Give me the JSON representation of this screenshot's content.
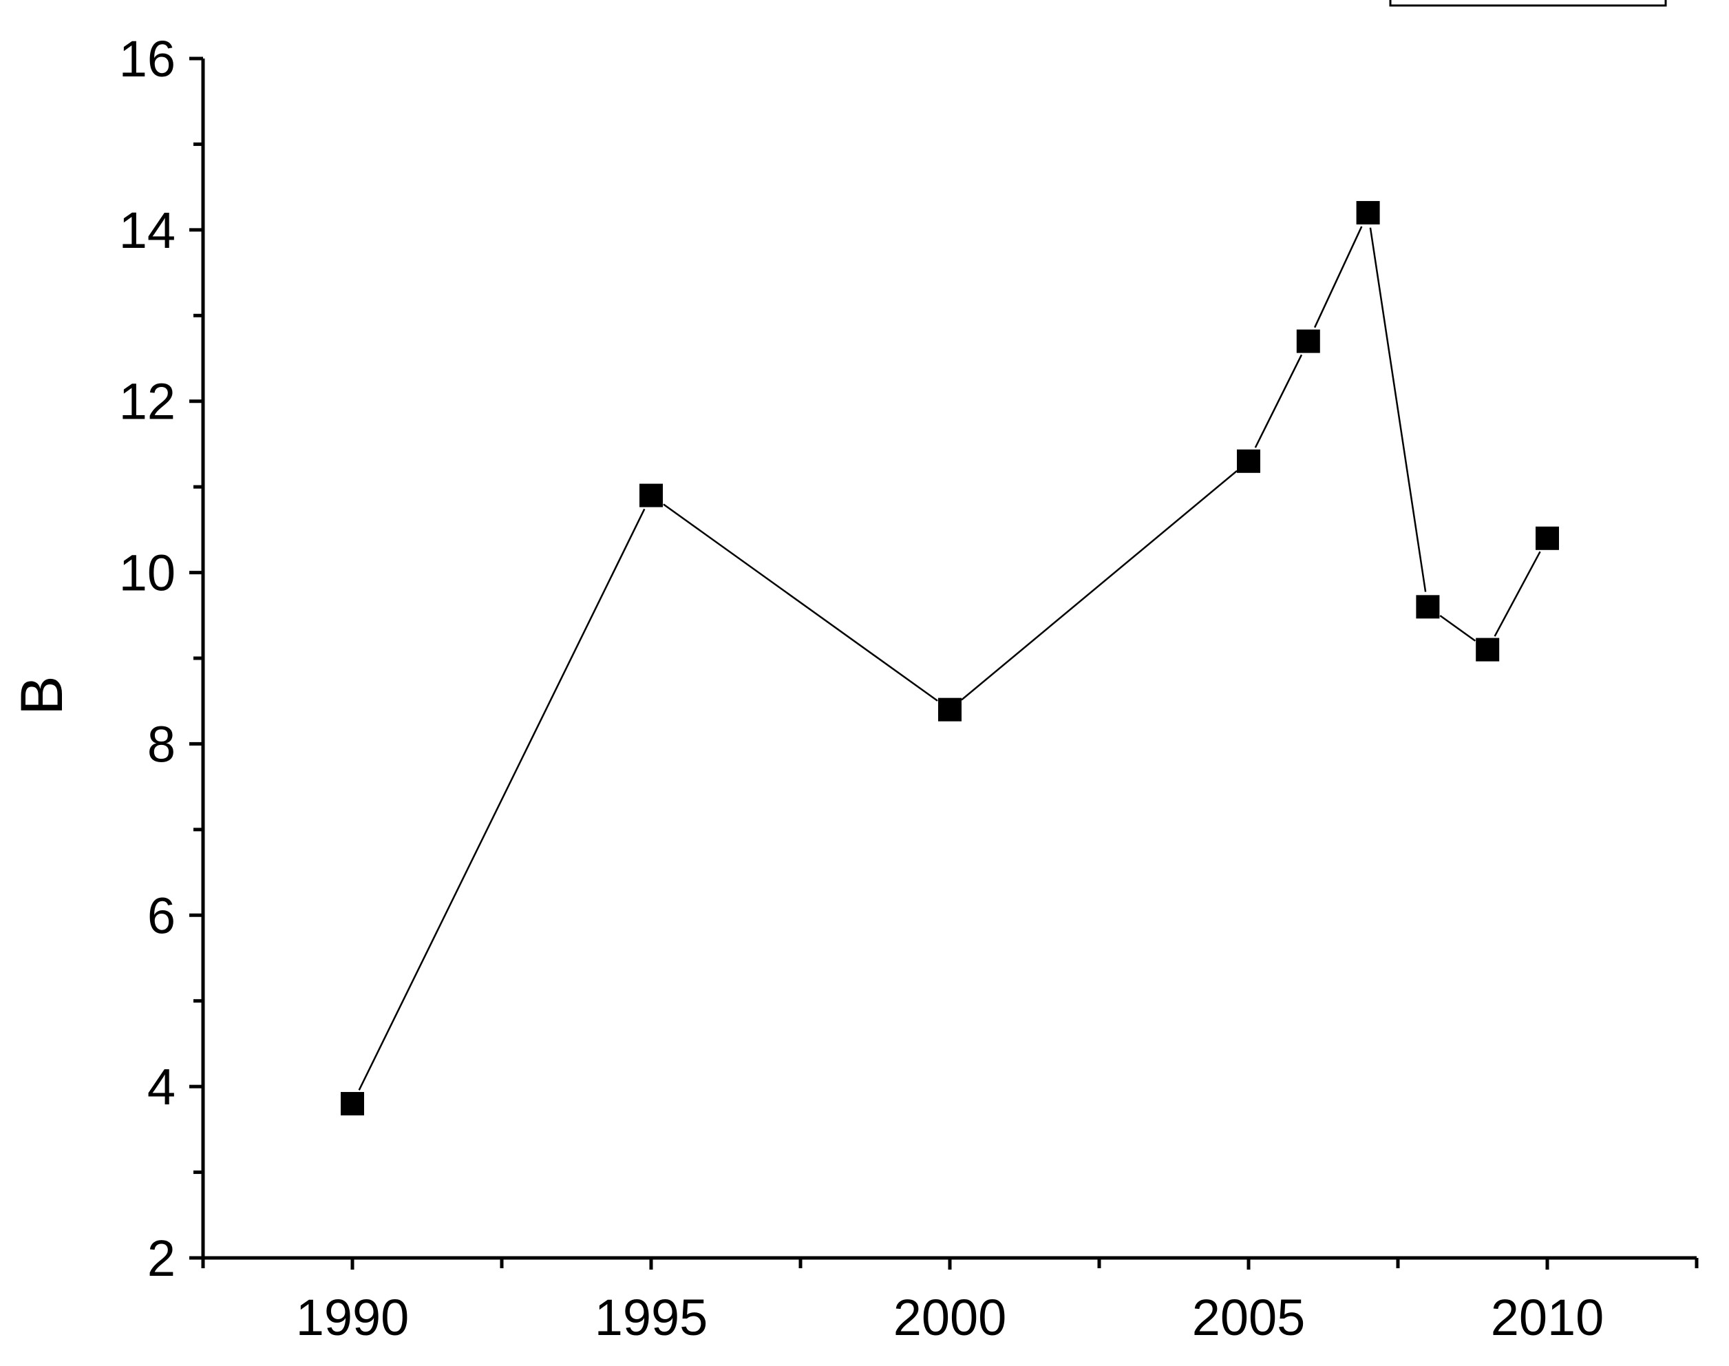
{
  "chart_data": {
    "type": "line",
    "xlabel": "",
    "ylabel": "B",
    "xlim": [
      1987.5,
      2012.5
    ],
    "ylim": [
      2,
      16
    ],
    "x_ticks": [
      1990,
      1995,
      2000,
      2005,
      2010
    ],
    "x_tick_labels": [
      "1990",
      "1995",
      "2000",
      "2005",
      "2010"
    ],
    "x_minor_ticks": [
      1987.5,
      1992.5,
      1997.5,
      2002.5,
      2007.5,
      2012.5
    ],
    "y_ticks": [
      2,
      4,
      6,
      8,
      10,
      12,
      14,
      16
    ],
    "y_tick_labels": [
      "2",
      "4",
      "6",
      "8",
      "10",
      "12",
      "14",
      "16"
    ],
    "y_minor_ticks": [
      3,
      5,
      7,
      9,
      11,
      13,
      15
    ],
    "grid": false,
    "legend": "top-right (empty box)",
    "marker": "square",
    "colors": {
      "line": "#000000",
      "marker": "#000000",
      "background": "#ffffff"
    },
    "series": [
      {
        "x": [
          1990,
          1995,
          2000,
          2005,
          2006,
          2007,
          2008,
          2009,
          2010
        ],
        "y": [
          3.8,
          10.9,
          8.4,
          11.3,
          12.7,
          14.2,
          9.6,
          9.1,
          10.4
        ]
      }
    ]
  }
}
